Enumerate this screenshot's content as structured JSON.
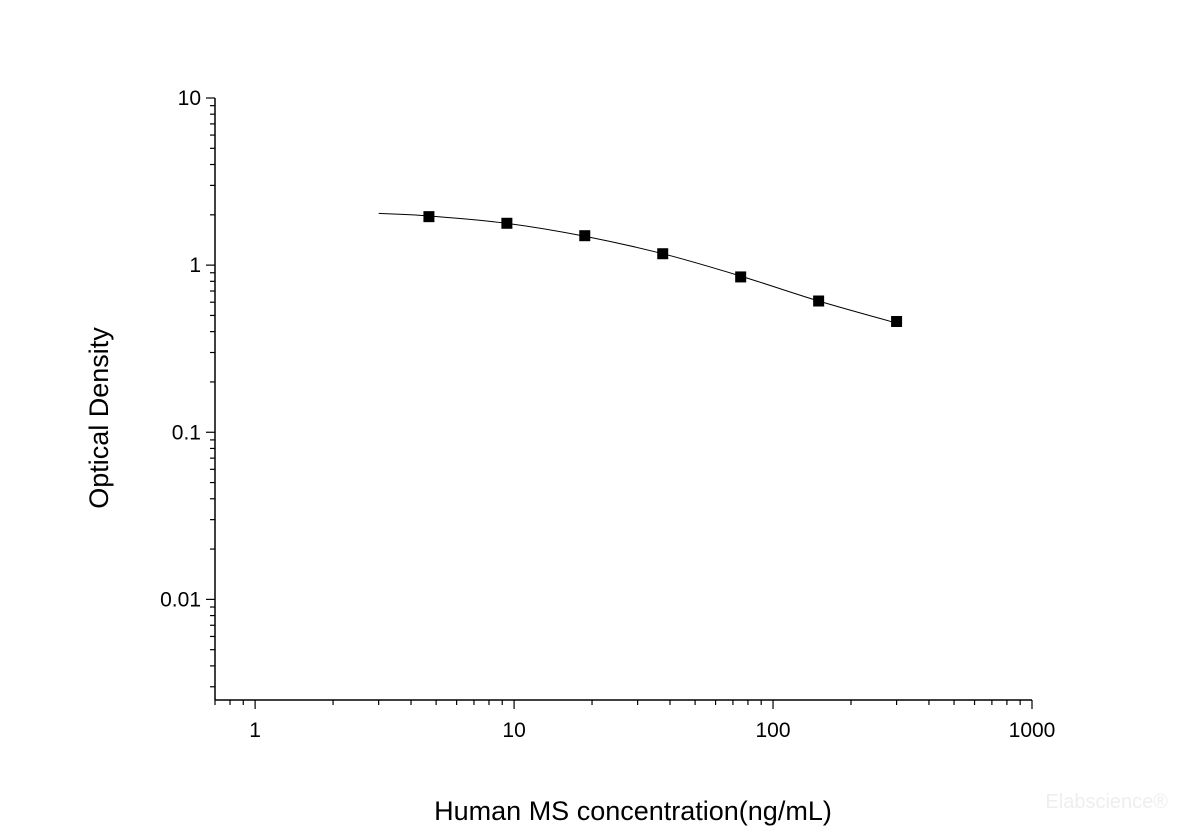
{
  "chart_data": {
    "type": "scatter",
    "title": "",
    "xlabel": "Human MS concentration(ng/mL)",
    "ylabel": "Optical Density",
    "x_scale": "log",
    "y_scale": "log",
    "xlim": [
      0.7,
      1000
    ],
    "ylim": [
      0.0025,
      10
    ],
    "x_ticks": [
      1,
      10,
      100,
      1000
    ],
    "x_tick_labels": [
      "1",
      "10",
      "100",
      "1000"
    ],
    "y_ticks": [
      0.01,
      0.1,
      1,
      10
    ],
    "y_tick_labels": [
      "0.01",
      "0.1",
      "1",
      "10"
    ],
    "grid": false,
    "legend": "none",
    "series": [
      {
        "marker": "square",
        "color": "#000000",
        "x": [
          4.69,
          9.38,
          18.75,
          37.5,
          75,
          150,
          300
        ],
        "y": [
          1.95,
          1.78,
          1.5,
          1.17,
          0.85,
          0.61,
          0.46
        ]
      }
    ],
    "fit_curve": {
      "color": "#000000",
      "x": [
        3,
        4.69,
        9.38,
        18.75,
        37.5,
        75,
        150,
        300
      ],
      "y": [
        2.04,
        1.97,
        1.78,
        1.49,
        1.17,
        0.86,
        0.61,
        0.45
      ]
    }
  },
  "watermark": "Elabscience®"
}
